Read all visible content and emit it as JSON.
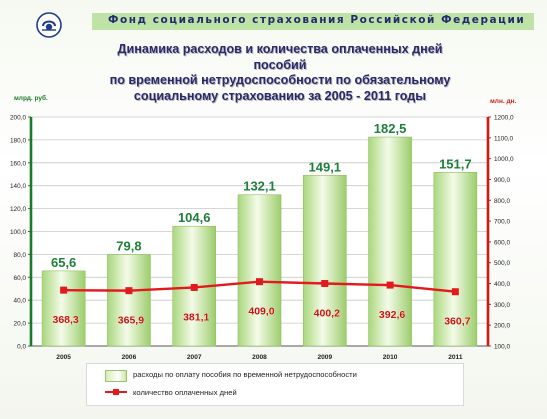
{
  "header": {
    "org_name": "Фонд социального страхования Российской Федерации",
    "title_lines": [
      "Динамика расходов и количества оплаченных дней",
      "пособий",
      "по временной нетрудоспособности  по обязательному",
      "социальному страхованию за 2005 - 2011 годы"
    ]
  },
  "chart_data": {
    "type": "bar",
    "categories": [
      "2005",
      "2006",
      "2007",
      "2008",
      "2009",
      "2010",
      "2011"
    ],
    "series": [
      {
        "name": "расходы по оплату пособия по временной нетрудоспособности",
        "kind": "bar",
        "axis": "left",
        "values": [
          65.6,
          79.8,
          104.6,
          132.1,
          149.1,
          182.5,
          151.7
        ],
        "labels": [
          "65,6",
          "79,8",
          "104,6",
          "132,1",
          "149,1",
          "182,5",
          "151,7"
        ],
        "color": "#b8df8c"
      },
      {
        "name": "количество оплаченных дней",
        "kind": "line",
        "axis": "right",
        "values": [
          368.3,
          365.9,
          381.1,
          409.0,
          400.2,
          392.6,
          360.7
        ],
        "labels": [
          "368,3",
          "365,9",
          "381,1",
          "409,0",
          "400,2",
          "392,6",
          "360,7"
        ],
        "color": "#e4191c"
      }
    ],
    "left_axis": {
      "unit": "млрд. руб.",
      "ylim": [
        0,
        200
      ],
      "ticks": [
        "0,0",
        "20,0",
        "40,0",
        "60,0",
        "80,0",
        "100,0",
        "120,0",
        "140,0",
        "160,0",
        "180,0",
        "200,0"
      ],
      "color": "#1a7a2a"
    },
    "right_axis": {
      "unit": "млн. дн.",
      "ylim": [
        100,
        1200
      ],
      "ticks": [
        "100,0",
        "200,0",
        "300,0",
        "400,0",
        "500,0",
        "600,0",
        "700,0",
        "800,0",
        "900,0",
        "1000,0",
        "1100,0",
        "1200,0"
      ],
      "color": "#d0180f"
    },
    "grid": true,
    "legend_position": "bottom"
  }
}
